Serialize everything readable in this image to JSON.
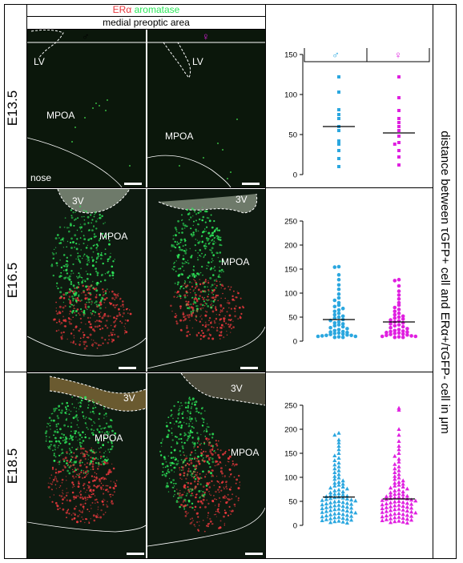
{
  "header": {
    "era_label": "ERα",
    "aromatase_label": "aromatase",
    "region": "medial preoptic area",
    "male_symbol": "♂",
    "female_symbol": "♀"
  },
  "colors": {
    "era": "#e8383d",
    "aromatase": "#2ee85a",
    "male": "#2ba7df",
    "female": "#e020e0"
  },
  "stages": [
    "E13.5",
    "E16.5",
    "E18.5"
  ],
  "micro_labels": {
    "lv": "LV",
    "mpoa": "MPOA",
    "nose": "nose",
    "v3": "3V"
  },
  "ylabel": "distance between τGFP+ cell and ERα+/τGFP- cell in μm",
  "chart_data": [
    {
      "type": "scatter",
      "stage": "E13.5",
      "marker": "square",
      "categories": [
        "♂",
        "♀"
      ],
      "ylim": [
        0,
        150
      ],
      "yticks": [
        0,
        50,
        100,
        150
      ],
      "mean_line": [
        60,
        52
      ],
      "series": [
        {
          "name": "♂",
          "values": [
            122,
            103,
            81,
            75,
            70,
            60,
            55,
            42,
            38,
            30,
            20,
            10
          ]
        },
        {
          "name": "♀",
          "values": [
            122,
            96,
            80,
            70,
            65,
            60,
            55,
            48,
            40,
            38,
            30,
            22,
            12
          ]
        }
      ]
    },
    {
      "type": "scatter",
      "stage": "E16.5",
      "marker": "circle",
      "categories": [
        "♂",
        "♀"
      ],
      "ylim": [
        0,
        250
      ],
      "yticks": [
        0,
        50,
        100,
        150,
        200,
        250
      ],
      "mean_line": [
        45,
        40
      ],
      "series": [
        {
          "name": "♂",
          "values": [
            155,
            154,
            138,
            128,
            117,
            108,
            98,
            90,
            85,
            80,
            75,
            72,
            68,
            65,
            62,
            58,
            55,
            52,
            50,
            48,
            45,
            43,
            40,
            38,
            36,
            34,
            32,
            30,
            28,
            26,
            24,
            22,
            20,
            19,
            18,
            17,
            16,
            15,
            14,
            13,
            12,
            12,
            11,
            10,
            10,
            9,
            8,
            8
          ]
        },
        {
          "name": "♀",
          "values": [
            128,
            126,
            115,
            104,
            96,
            88,
            80,
            75,
            70,
            66,
            62,
            58,
            55,
            52,
            50,
            48,
            46,
            44,
            42,
            40,
            38,
            36,
            34,
            32,
            30,
            28,
            26,
            24,
            22,
            21,
            20,
            19,
            18,
            17,
            16,
            15,
            14,
            13,
            12,
            11,
            10,
            10,
            9,
            8,
            8
          ]
        }
      ]
    },
    {
      "type": "scatter",
      "stage": "E18.5",
      "marker": "triangle",
      "categories": [
        "♂",
        "♀"
      ],
      "ylim": [
        0,
        250
      ],
      "yticks": [
        0,
        50,
        100,
        150,
        200,
        250
      ],
      "mean_line": [
        59,
        55
      ],
      "series": [
        {
          "name": "♂",
          "values": [
            192,
            188,
            178,
            172,
            165,
            158,
            150,
            145,
            140,
            135,
            130,
            126,
            122,
            118,
            114,
            110,
            106,
            102,
            99,
            96,
            93,
            90,
            88,
            86,
            84,
            82,
            80,
            78,
            76,
            74,
            72,
            70,
            68,
            66,
            65,
            64,
            62,
            61,
            60,
            59,
            58,
            57,
            56,
            55,
            54,
            53,
            52,
            51,
            50,
            49,
            48,
            47,
            46,
            45,
            44,
            43,
            42,
            41,
            40,
            39,
            38,
            37,
            36,
            35,
            34,
            33,
            32,
            31,
            30,
            29,
            28,
            27,
            26,
            25,
            24,
            23,
            22,
            21,
            20,
            19,
            18,
            17,
            16,
            15,
            14,
            13,
            12,
            11,
            10,
            9,
            8,
            7,
            6,
            5
          ]
        },
        {
          "name": "♀",
          "values": [
            244,
            240,
            200,
            188,
            175,
            165,
            158,
            150,
            144,
            138,
            132,
            127,
            122,
            118,
            114,
            110,
            106,
            102,
            99,
            96,
            93,
            90,
            88,
            86,
            84,
            82,
            80,
            78,
            76,
            74,
            72,
            70,
            68,
            66,
            65,
            64,
            62,
            61,
            60,
            59,
            58,
            57,
            56,
            55,
            54,
            53,
            52,
            51,
            50,
            49,
            48,
            47,
            46,
            45,
            44,
            43,
            42,
            41,
            40,
            39,
            38,
            37,
            36,
            35,
            34,
            33,
            32,
            31,
            30,
            29,
            28,
            27,
            26,
            25,
            24,
            23,
            22,
            21,
            20,
            19,
            18,
            17,
            16,
            15,
            14,
            13,
            12,
            11,
            10,
            9,
            8,
            7,
            6,
            5
          ]
        }
      ]
    }
  ]
}
